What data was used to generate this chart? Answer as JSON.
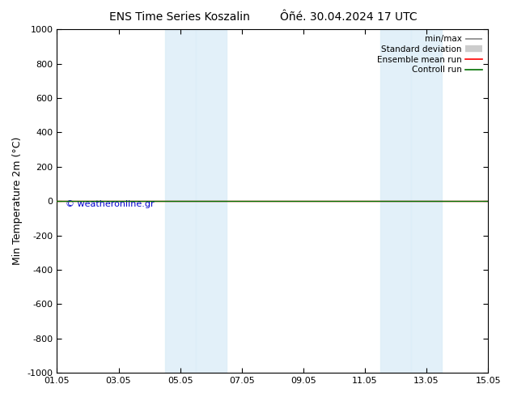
{
  "title_left": "ENS Time Series Koszalin",
  "title_right": "Ôñé. 30.04.2024 17 UTC",
  "ylabel": "Min Temperature 2m (°C)",
  "ylim_top": -1000,
  "ylim_bottom": 1000,
  "yticks": [
    -1000,
    -800,
    -600,
    -400,
    -200,
    0,
    200,
    400,
    600,
    800,
    1000
  ],
  "ytick_labels": [
    "-1000",
    "-800",
    "-600",
    "-400",
    "-200",
    "0",
    "200",
    "400",
    "600",
    "800",
    "1000"
  ],
  "xtick_labels": [
    "01.05",
    "03.05",
    "05.05",
    "07.05",
    "09.05",
    "11.05",
    "13.05",
    "15.05"
  ],
  "xtick_positions": [
    0,
    2,
    4,
    6,
    8,
    10,
    12,
    14
  ],
  "xmin": 0,
  "xmax": 14,
  "flat_line_y": 0,
  "flat_line_color_red": "#ff0000",
  "flat_line_color_green": "#007000",
  "shaded_bands": [
    {
      "xstart": 3.5,
      "xend": 4.5
    },
    {
      "xstart": 4.5,
      "xend": 5.5
    },
    {
      "xstart": 10.5,
      "xend": 11.5
    },
    {
      "xstart": 11.5,
      "xend": 12.5
    }
  ],
  "shade_color": "#ddeef8",
  "shade_alpha": 0.85,
  "background_color": "#ffffff",
  "watermark": "© weatheronline.gr",
  "watermark_color": "#0000cc",
  "legend_labels": [
    "min/max",
    "Standard deviation",
    "Ensemble mean run",
    "Controll run"
  ],
  "legend_line_colors": [
    "#888888",
    "#cccccc",
    "#ff0000",
    "#007000"
  ],
  "title_fontsize": 10,
  "tick_fontsize": 8,
  "ylabel_fontsize": 9
}
